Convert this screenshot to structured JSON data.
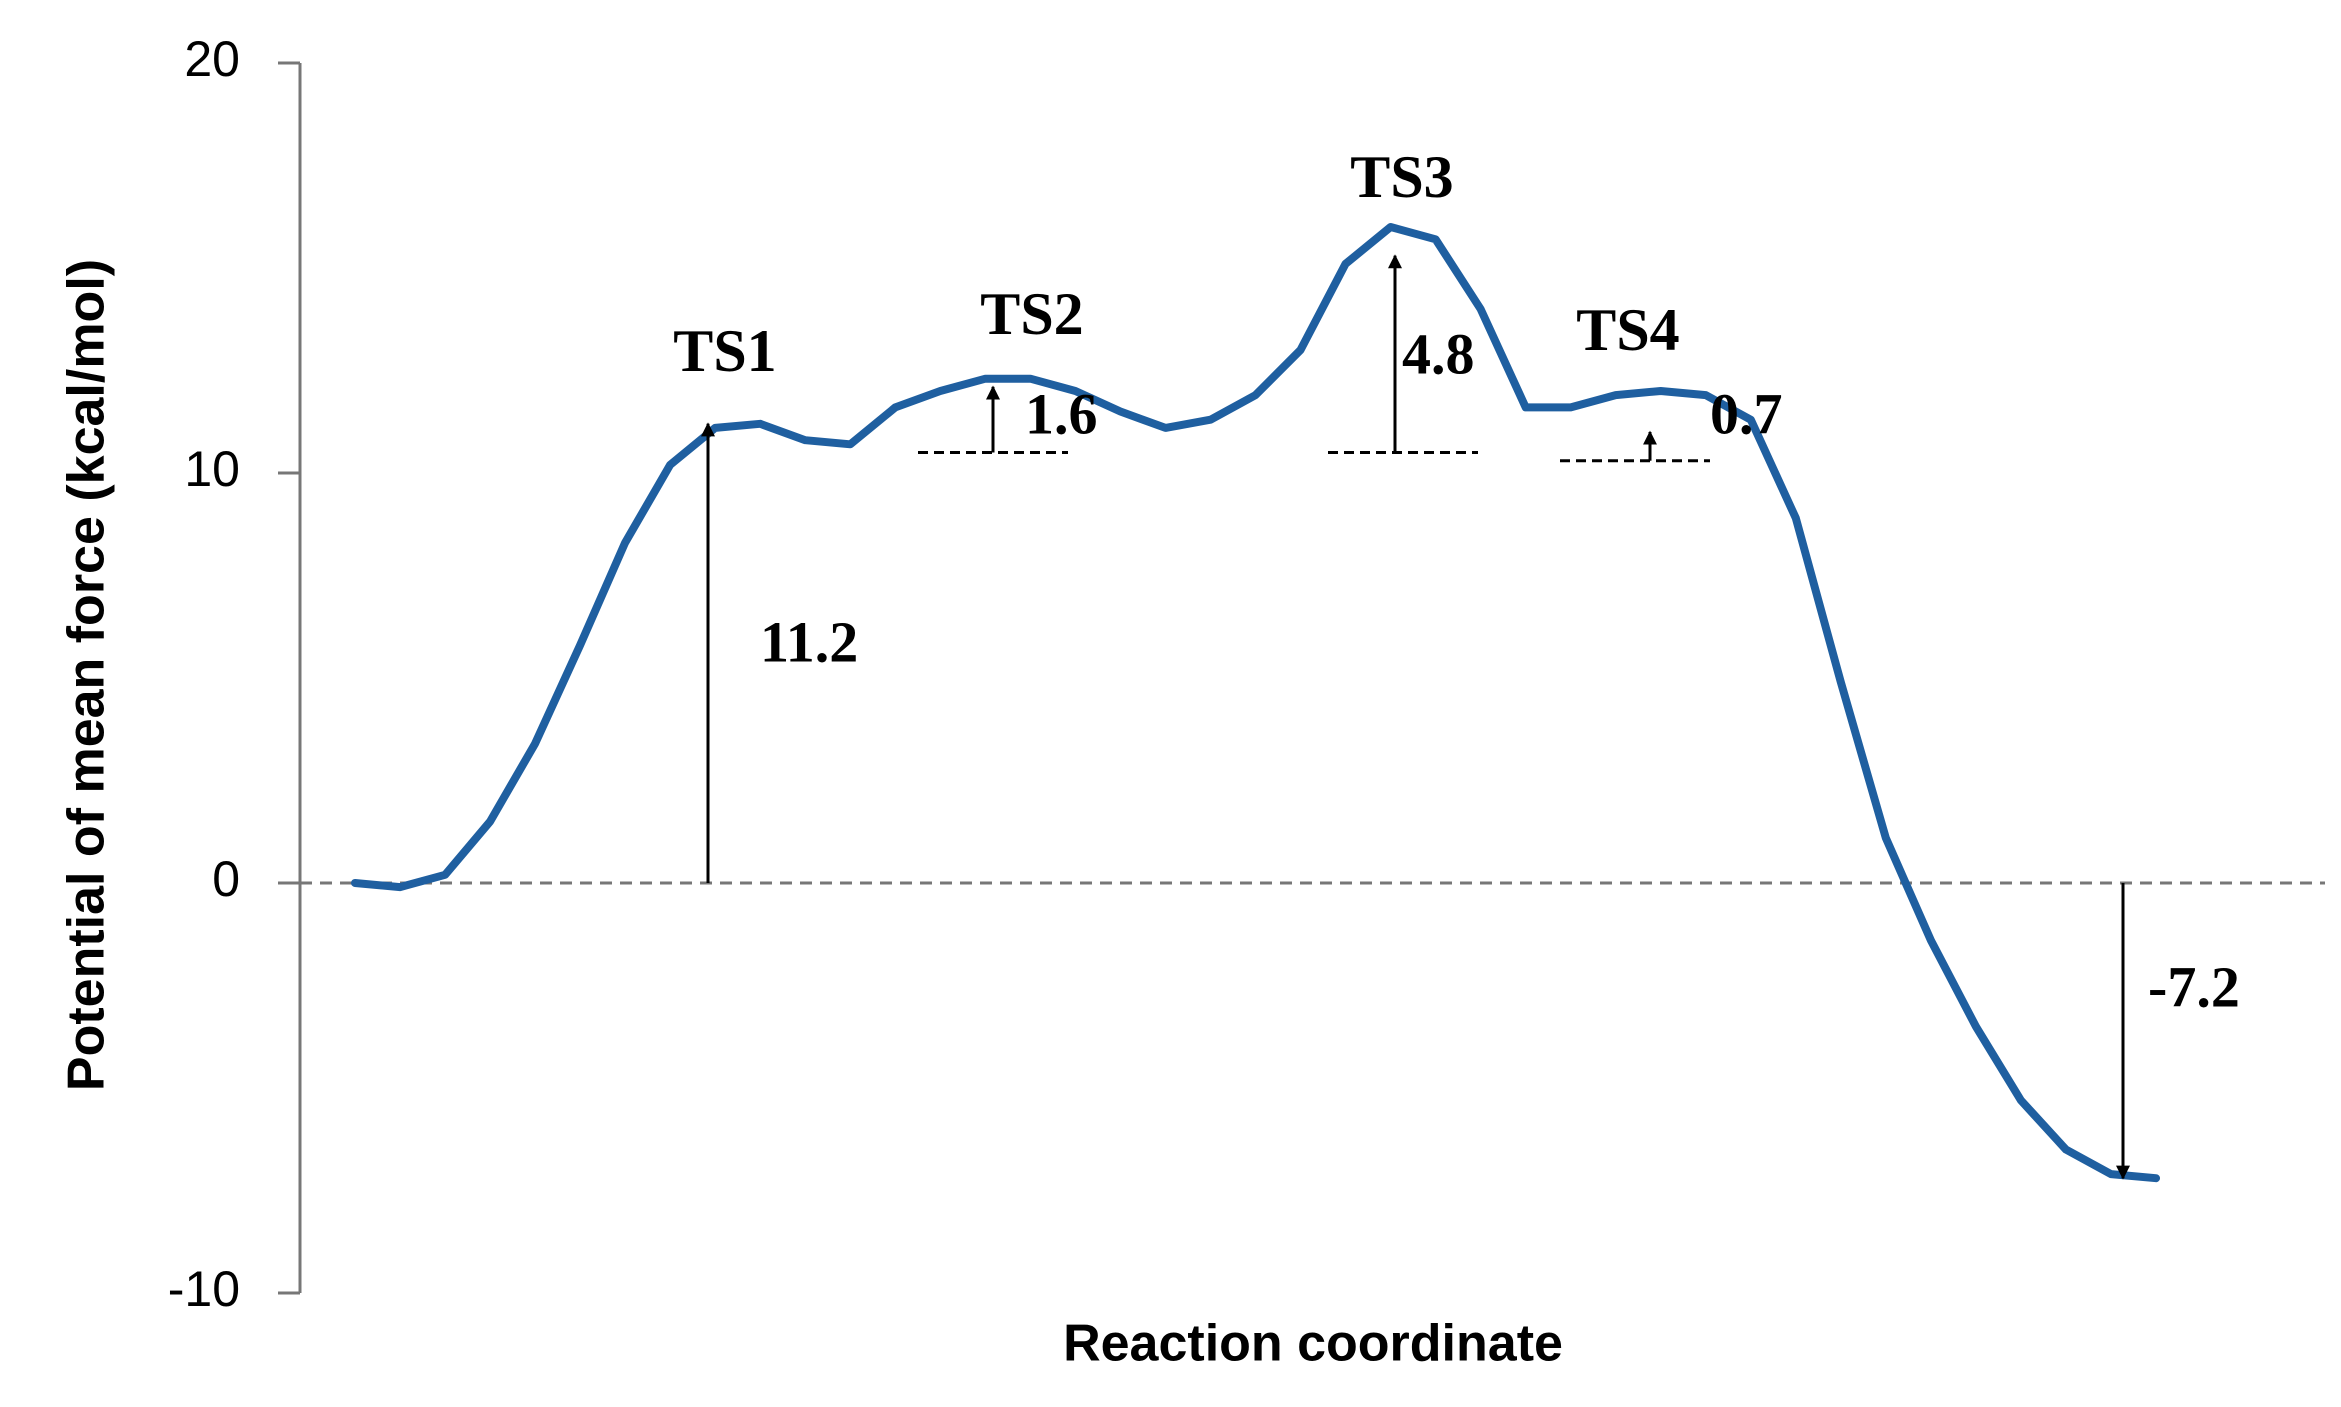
{
  "chart_data": {
    "type": "line",
    "ylabel": "Potential of mean force (kcal/mol)",
    "xlabel": "Reaction coordinate",
    "ylim": [
      -10,
      20
    ],
    "yticks": [
      -10,
      0,
      10,
      20
    ],
    "color": "#1f5fa0",
    "values": [
      0,
      -0.1,
      0.2,
      1.5,
      3.4,
      5.8,
      8.3,
      10.2,
      11.1,
      11.2,
      10.8,
      10.7,
      11.6,
      12.0,
      12.3,
      12.3,
      12.0,
      11.5,
      11.1,
      11.3,
      11.9,
      13.0,
      15.1,
      16.0,
      15.7,
      14.0,
      11.6,
      11.6,
      11.9,
      12.0,
      11.9,
      11.3,
      8.9,
      4.9,
      1.1,
      -1.4,
      -3.5,
      -5.3,
      -6.5,
      -7.1,
      -7.2
    ],
    "annotations": [
      "TS1",
      "TS2",
      "TS3",
      "TS4"
    ],
    "barriers": [
      {
        "value": 11.2,
        "base": 0
      },
      {
        "value": 1.6,
        "base": 10.5
      },
      {
        "value": 4.8,
        "base": 10.5
      },
      {
        "value": 0.7,
        "base": 10.3
      },
      {
        "value": -7.2,
        "base": 0
      }
    ]
  }
}
